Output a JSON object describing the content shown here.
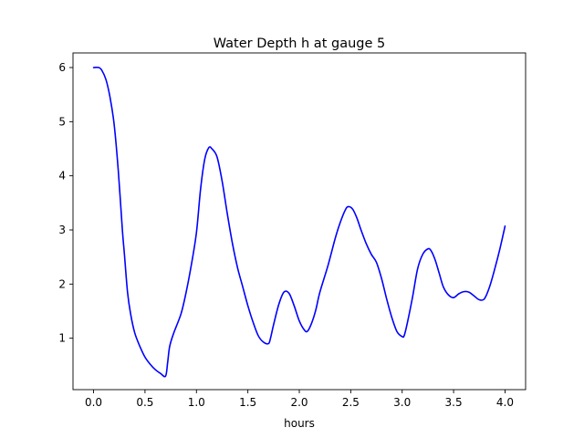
{
  "chart_data": {
    "type": "line",
    "title": "Water Depth h at gauge 5",
    "xlabel": "hours",
    "ylabel": "",
    "xlim": [
      -0.2,
      4.2
    ],
    "ylim": [
      0.05,
      6.27
    ],
    "xticks": [
      0.0,
      0.5,
      1.0,
      1.5,
      2.0,
      2.5,
      3.0,
      3.5,
      4.0
    ],
    "xtick_labels": [
      "0.0",
      "0.5",
      "1.0",
      "1.5",
      "2.0",
      "2.5",
      "3.0",
      "3.5",
      "4.0"
    ],
    "yticks": [
      1,
      2,
      3,
      4,
      5,
      6
    ],
    "ytick_labels": [
      "1",
      "2",
      "3",
      "4",
      "5",
      "6"
    ],
    "grid": false,
    "color": "#0000ff",
    "series": [
      {
        "x": [
          0.0,
          0.05,
          0.08,
          0.12,
          0.16,
          0.2,
          0.24,
          0.28,
          0.3,
          0.33,
          0.36,
          0.4,
          0.45,
          0.5,
          0.55,
          0.6,
          0.65,
          0.7,
          0.72,
          0.74,
          0.78,
          0.85,
          0.9,
          0.95,
          1.0,
          1.04,
          1.08,
          1.12,
          1.15,
          1.2,
          1.25,
          1.3,
          1.35,
          1.4,
          1.45,
          1.5,
          1.55,
          1.6,
          1.65,
          1.7,
          1.72,
          1.75,
          1.8,
          1.85,
          1.9,
          1.95,
          2.0,
          2.05,
          2.08,
          2.12,
          2.16,
          2.2,
          2.28,
          2.35,
          2.4,
          2.45,
          2.48,
          2.52,
          2.56,
          2.6,
          2.65,
          2.7,
          2.75,
          2.8,
          2.85,
          2.9,
          2.95,
          3.0,
          3.02,
          3.05,
          3.1,
          3.15,
          3.2,
          3.25,
          3.28,
          3.32,
          3.36,
          3.4,
          3.45,
          3.5,
          3.55,
          3.6,
          3.65,
          3.7,
          3.75,
          3.8,
          3.85,
          3.9,
          3.95,
          4.0
        ],
        "y": [
          6.0,
          6.0,
          5.95,
          5.78,
          5.45,
          4.95,
          4.1,
          3.0,
          2.55,
          1.85,
          1.45,
          1.1,
          0.85,
          0.65,
          0.52,
          0.42,
          0.35,
          0.3,
          0.55,
          0.85,
          1.1,
          1.45,
          1.85,
          2.35,
          2.95,
          3.75,
          4.3,
          4.52,
          4.5,
          4.35,
          3.9,
          3.3,
          2.75,
          2.3,
          1.95,
          1.6,
          1.3,
          1.05,
          0.93,
          0.9,
          1.0,
          1.25,
          1.62,
          1.85,
          1.83,
          1.6,
          1.32,
          1.15,
          1.13,
          1.28,
          1.52,
          1.85,
          2.35,
          2.85,
          3.15,
          3.38,
          3.43,
          3.38,
          3.22,
          3.0,
          2.75,
          2.55,
          2.4,
          2.1,
          1.72,
          1.38,
          1.12,
          1.03,
          1.05,
          1.28,
          1.75,
          2.28,
          2.55,
          2.65,
          2.62,
          2.45,
          2.2,
          1.95,
          1.8,
          1.75,
          1.82,
          1.86,
          1.85,
          1.78,
          1.71,
          1.73,
          1.95,
          2.28,
          2.65,
          3.07
        ]
      }
    ]
  }
}
